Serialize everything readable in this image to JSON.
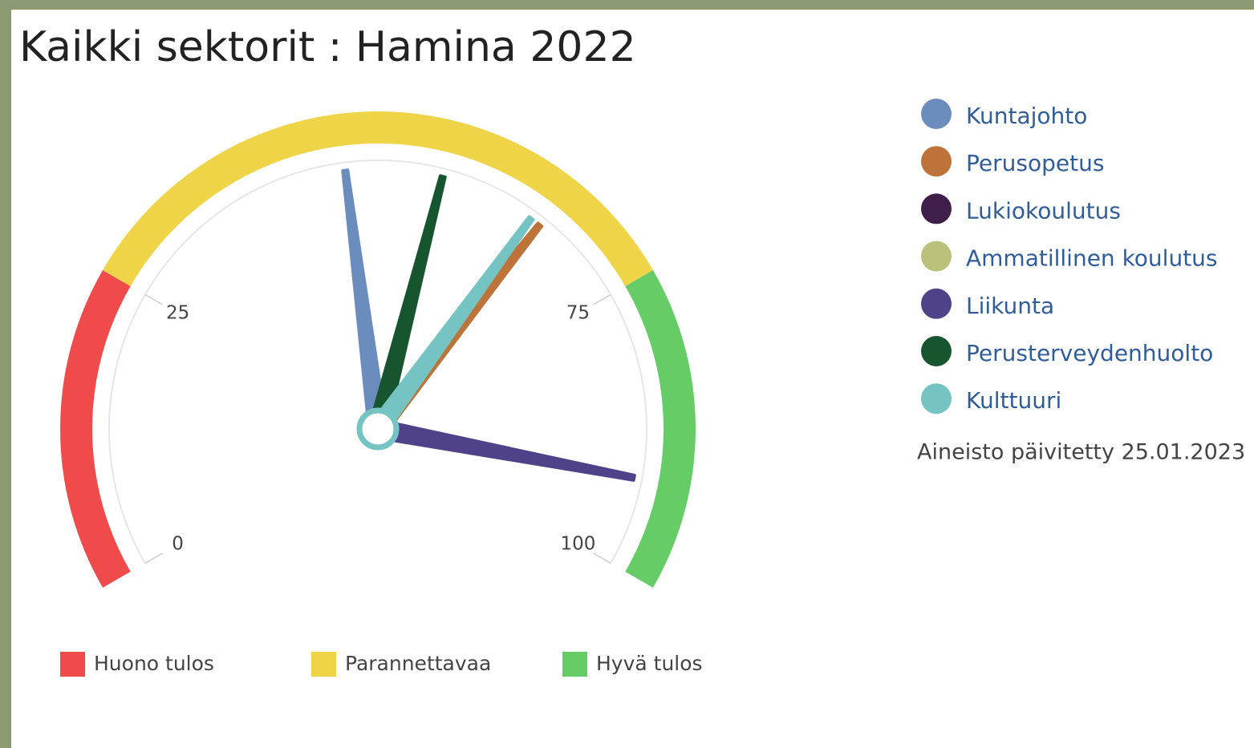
{
  "chart_data": {
    "type": "gauge",
    "title": "Kaikki sektorit : Hamina 2022",
    "ylim": [
      0,
      100
    ],
    "yticks": [
      0,
      25,
      75,
      100
    ],
    "bands": [
      {
        "name": "Huono tulos",
        "color": "#f04b4b",
        "from": 0,
        "to": 25
      },
      {
        "name": "Parannettavaa",
        "color": "#f0d447",
        "from": 25,
        "to": 75
      },
      {
        "name": "Hyvä tulos",
        "color": "#66cc66",
        "from": 75,
        "to": 100
      }
    ],
    "series": [
      {
        "name": "Kuntajohto",
        "color": "#6b8dbd",
        "value": 47
      },
      {
        "name": "Perusopetus",
        "color": "#bd7339",
        "value": 66
      },
      {
        "name": "Lukiokoulutus",
        "color": "#3f1f4a",
        "value": null
      },
      {
        "name": "Ammatillinen koulutus",
        "color": "#b9c17a",
        "value": null
      },
      {
        "name": "Liikunta",
        "color": "#4f4288",
        "value": 92
      },
      {
        "name": "Perusterveydenhuolto",
        "color": "#17552e",
        "value": 56
      },
      {
        "name": "Kulttuuri",
        "color": "#76c3c3",
        "value": 65
      }
    ],
    "note": "Aineisto päivitetty 25.01.2023"
  }
}
